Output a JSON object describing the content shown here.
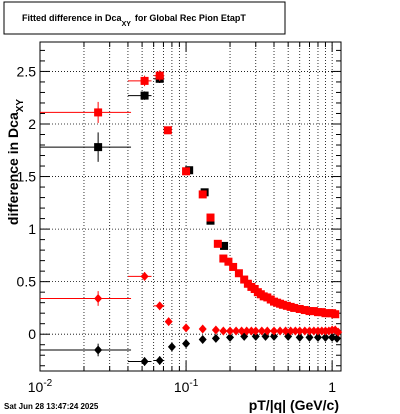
{
  "chart_data": {
    "type": "scatter",
    "title_parts": [
      "Fitted difference in Dca",
      "XY",
      "for Global Rec Pion EtapT"
    ],
    "ylabel_parts": [
      "difference in Dca",
      "XY"
    ],
    "xlabel": "pT/|q| (GeV/c)",
    "timestamp": "Sat Jun 28 13:47:24 2025",
    "xscale": "log",
    "xlim": [
      0.01,
      1.15
    ],
    "ylim": [
      -0.35,
      2.78
    ],
    "grid": true,
    "x_ticks": [
      {
        "value": 0.01,
        "base": "10",
        "exp": "-2"
      },
      {
        "value": 0.1,
        "base": "10",
        "exp": "-1"
      },
      {
        "value": 1,
        "base": "1",
        "exp": ""
      }
    ],
    "y_ticks": [
      {
        "value": 0,
        "label": "0"
      },
      {
        "value": 0.5,
        "label": "0.5"
      },
      {
        "value": 1,
        "label": "1"
      },
      {
        "value": 1.5,
        "label": "1.5"
      },
      {
        "value": 2,
        "label": "2"
      },
      {
        "value": 2.5,
        "label": "2.5"
      }
    ],
    "series": [
      {
        "marker": "square",
        "color": "#000000",
        "x": [
          0.025,
          0.052,
          0.066,
          0.105,
          0.134,
          0.147,
          0.182
        ],
        "y": [
          1.78,
          2.27,
          2.43,
          1.56,
          1.35,
          1.08,
          0.84
        ],
        "xerr": [
          [
            0.01,
            0.042
          ],
          [
            0.04,
            0.058
          ],
          [
            0.06,
            0.071
          ],
          null,
          null,
          null,
          null
        ],
        "yerr": [
          0.14,
          0.04,
          0.04,
          0.02,
          0.02,
          0.02,
          0.02
        ]
      },
      {
        "marker": "square",
        "color": "#ff0000",
        "x": [
          0.025,
          0.052,
          0.066,
          0.075,
          0.1,
          0.13,
          0.147,
          0.165,
          0.18,
          0.195,
          0.21,
          0.23,
          0.25,
          0.265,
          0.28,
          0.295,
          0.31,
          0.325,
          0.34,
          0.36,
          0.38,
          0.4,
          0.42,
          0.44,
          0.46,
          0.49,
          0.52,
          0.55,
          0.6,
          0.65,
          0.7,
          0.75,
          0.8,
          0.85,
          0.9,
          0.95,
          1.0,
          1.05
        ],
        "y": [
          2.11,
          2.41,
          2.46,
          1.94,
          1.55,
          1.33,
          1.11,
          0.86,
          0.72,
          0.69,
          0.64,
          0.58,
          0.52,
          0.48,
          0.45,
          0.43,
          0.4,
          0.38,
          0.36,
          0.35,
          0.33,
          0.31,
          0.3,
          0.29,
          0.28,
          0.27,
          0.26,
          0.25,
          0.24,
          0.23,
          0.22,
          0.22,
          0.21,
          0.21,
          0.2,
          0.2,
          0.2,
          0.19
        ],
        "xerr": [
          [
            0.01,
            0.042
          ],
          [
            0.04,
            0.058
          ],
          [
            0.06,
            0.071
          ],
          null,
          null,
          null,
          null,
          null,
          null,
          null,
          null,
          null,
          null,
          null,
          null,
          null,
          null,
          null,
          null,
          null,
          null,
          null,
          null,
          null,
          null,
          null,
          null,
          null,
          null,
          null,
          null,
          null,
          null,
          null,
          null,
          null,
          null,
          null
        ],
        "yerr": [
          0.1,
          0.05,
          0.05,
          0.02,
          0.02,
          0.02,
          0.02,
          0.02,
          0.02,
          0.02,
          0.02,
          0.02,
          0.02,
          0.02,
          0.02,
          0.02,
          0.02,
          0.02,
          0.02,
          0.02,
          0.02,
          0.02,
          0.02,
          0.02,
          0.02,
          0.02,
          0.02,
          0.02,
          0.02,
          0.02,
          0.02,
          0.02,
          0.02,
          0.02,
          0.02,
          0.02,
          0.02,
          0.02
        ]
      },
      {
        "marker": "diamond",
        "color": "#000000",
        "x": [
          0.025,
          0.052,
          0.066,
          0.08,
          0.1,
          0.13,
          0.16,
          0.2,
          0.25,
          0.3,
          0.35,
          0.4,
          0.5,
          0.6,
          0.7,
          0.8,
          0.9,
          1.0,
          1.08
        ],
        "y": [
          -0.15,
          -0.26,
          -0.25,
          -0.12,
          -0.09,
          -0.05,
          -0.04,
          -0.03,
          -0.02,
          -0.02,
          -0.02,
          -0.02,
          -0.02,
          -0.03,
          -0.03,
          -0.03,
          -0.03,
          -0.03,
          -0.04
        ],
        "xerr": [
          [
            0.01,
            0.042
          ],
          [
            0.04,
            0.058
          ],
          [
            0.06,
            0.071
          ],
          null,
          null,
          null,
          null,
          null,
          null,
          null,
          null,
          null,
          null,
          null,
          null,
          null,
          null,
          null,
          null
        ],
        "yerr": [
          0.06,
          0.04,
          0.04,
          0.02,
          0.02,
          0.02,
          0.02,
          0.02,
          0.02,
          0.02,
          0.02,
          0.02,
          0.02,
          0.02,
          0.02,
          0.02,
          0.02,
          0.02,
          0.02
        ]
      },
      {
        "marker": "diamond",
        "color": "#ff0000",
        "x": [
          0.025,
          0.052,
          0.066,
          0.076,
          0.1,
          0.13,
          0.16,
          0.18,
          0.2,
          0.22,
          0.24,
          0.26,
          0.28,
          0.3,
          0.33,
          0.36,
          0.4,
          0.44,
          0.48,
          0.52,
          0.56,
          0.6,
          0.65,
          0.7,
          0.75,
          0.8,
          0.85,
          0.9,
          0.95,
          1.0,
          1.05,
          1.1
        ],
        "y": [
          0.34,
          0.55,
          0.27,
          0.12,
          0.06,
          0.05,
          0.04,
          0.03,
          0.03,
          0.03,
          0.03,
          0.03,
          0.03,
          0.03,
          0.03,
          0.03,
          0.03,
          0.03,
          0.03,
          0.03,
          0.03,
          0.03,
          0.03,
          0.03,
          0.03,
          0.03,
          0.03,
          0.03,
          0.03,
          0.04,
          0.04,
          0.02
        ],
        "xerr": [
          [
            0.01,
            0.042
          ],
          [
            0.04,
            0.058
          ],
          [
            0.06,
            0.071
          ],
          null,
          null,
          null,
          null,
          null,
          null,
          null,
          null,
          null,
          null,
          null,
          null,
          null,
          null,
          null,
          null,
          null,
          null,
          null,
          null,
          null,
          null,
          null,
          null,
          null,
          null,
          null,
          null,
          null
        ],
        "yerr": [
          0.07,
          0.04,
          0.03,
          0.02,
          0.02,
          0.02,
          0.02,
          0.02,
          0.02,
          0.02,
          0.02,
          0.02,
          0.02,
          0.02,
          0.02,
          0.02,
          0.02,
          0.02,
          0.02,
          0.02,
          0.02,
          0.02,
          0.02,
          0.02,
          0.02,
          0.02,
          0.02,
          0.02,
          0.02,
          0.02,
          0.02,
          0.02
        ]
      }
    ]
  }
}
